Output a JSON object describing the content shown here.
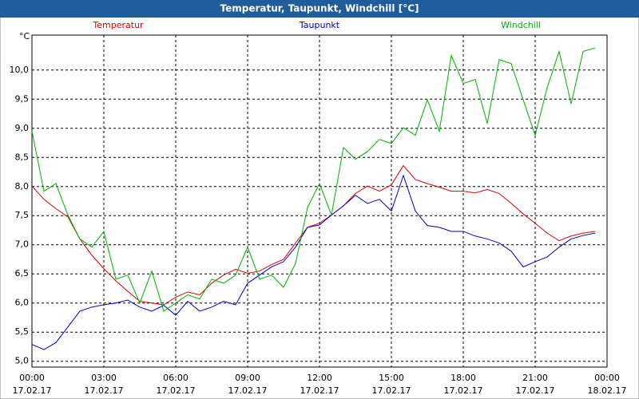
{
  "window_title": "Temperatur, Taupunkt, Windchill [°C]",
  "chart_data": {
    "type": "line",
    "y_label": "°C",
    "x": [
      0,
      0.5,
      1,
      1.5,
      2,
      2.5,
      3,
      3.5,
      4,
      4.5,
      5,
      5.5,
      6,
      6.5,
      7,
      7.5,
      8,
      8.5,
      9,
      9.5,
      10,
      10.5,
      11,
      11.5,
      12,
      12.5,
      13,
      13.5,
      14,
      14.5,
      15,
      15.5,
      16,
      16.5,
      17,
      17.5,
      18,
      18.5,
      19,
      19.5,
      20,
      20.5,
      21,
      21.5,
      22,
      22.5,
      23,
      23.5
    ],
    "xlim": [
      0,
      24
    ],
    "xticks": [
      {
        "value": 0,
        "label": "00:00"
      },
      {
        "value": 3,
        "label": "03:00"
      },
      {
        "value": 6,
        "label": "06:00"
      },
      {
        "value": 9,
        "label": "09:00"
      },
      {
        "value": 12,
        "label": "12:00"
      },
      {
        "value": 15,
        "label": "15:00"
      },
      {
        "value": 18,
        "label": "18:00"
      },
      {
        "value": 21,
        "label": "21:00"
      },
      {
        "value": 24,
        "label": "00:00"
      }
    ],
    "xtick_dates": [
      "17.02.17",
      "17.02.17",
      "17.02.17",
      "17.02.17",
      "17.02.17",
      "17.02.17",
      "17.02.17",
      "17.02.17",
      "18.02.17"
    ],
    "ylim": [
      4.9,
      10.6
    ],
    "yticks": [
      {
        "value": 5,
        "label": "5,0"
      },
      {
        "value": 5.5,
        "label": "5,5"
      },
      {
        "value": 6,
        "label": "6,0"
      },
      {
        "value": 6.5,
        "label": "6,5"
      },
      {
        "value": 7,
        "label": "7,0"
      },
      {
        "value": 7.5,
        "label": "7,5"
      },
      {
        "value": 8,
        "label": "8,0"
      },
      {
        "value": 8.5,
        "label": "8,5"
      },
      {
        "value": 9,
        "label": "9,0"
      },
      {
        "value": 9.5,
        "label": "9,5"
      },
      {
        "value": 10,
        "label": "10,0"
      }
    ],
    "grid": true,
    "series": [
      {
        "name": "Temperatur",
        "color": "#e00000",
        "values": [
          8.01,
          7.78,
          7.62,
          7.48,
          7.1,
          6.82,
          6.59,
          6.38,
          6.2,
          6.03,
          6.0,
          5.97,
          6.1,
          6.19,
          6.14,
          6.34,
          6.48,
          6.58,
          6.51,
          6.55,
          6.66,
          6.75,
          7.03,
          7.3,
          7.37,
          7.51,
          7.67,
          7.88,
          8.01,
          7.92,
          8.03,
          8.36,
          8.12,
          8.05,
          7.99,
          7.92,
          7.92,
          7.89,
          7.95,
          7.88,
          7.71,
          7.53,
          7.37,
          7.2,
          7.07,
          7.15,
          7.2,
          7.23
        ]
      },
      {
        "name": "Taupunkt",
        "color": "#0000c0",
        "values": [
          5.29,
          5.2,
          5.32,
          5.59,
          5.86,
          5.93,
          5.97,
          6.0,
          6.05,
          5.93,
          5.86,
          5.96,
          5.79,
          6.03,
          5.86,
          5.93,
          6.03,
          5.97,
          6.34,
          6.48,
          6.62,
          6.71,
          6.96,
          7.3,
          7.34,
          7.51,
          7.67,
          7.85,
          7.71,
          7.78,
          7.58,
          8.19,
          7.58,
          7.33,
          7.3,
          7.23,
          7.23,
          7.15,
          7.1,
          7.03,
          6.89,
          6.62,
          6.71,
          6.79,
          6.96,
          7.1,
          7.16,
          7.2
        ]
      },
      {
        "name": "Windchill",
        "color": "#00b000",
        "values": [
          8.95,
          7.92,
          8.05,
          7.51,
          7.1,
          6.96,
          7.23,
          6.41,
          6.48,
          6.0,
          6.55,
          5.86,
          6.0,
          6.14,
          6.07,
          6.41,
          6.34,
          6.48,
          6.96,
          6.41,
          6.48,
          6.27,
          6.68,
          7.64,
          8.05,
          7.51,
          8.67,
          8.47,
          8.6,
          8.81,
          8.74,
          9.01,
          8.88,
          9.49,
          8.95,
          10.25,
          9.77,
          9.84,
          9.08,
          10.18,
          10.11,
          9.49,
          8.88,
          9.7,
          10.32,
          9.42,
          10.32,
          10.38
        ]
      }
    ]
  }
}
